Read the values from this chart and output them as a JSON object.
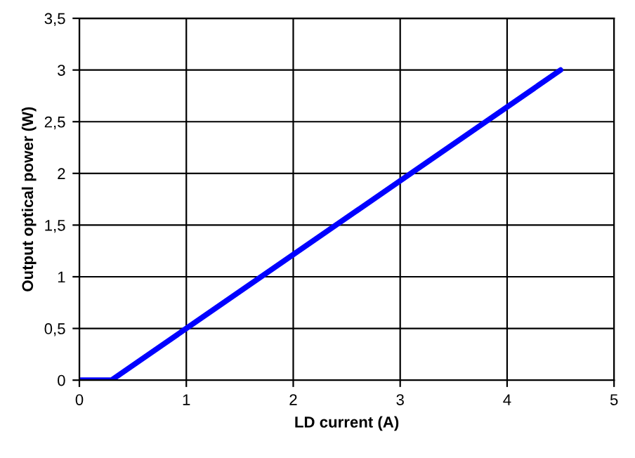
{
  "chart_data": {
    "type": "line",
    "xlabel": "LD current (A)",
    "ylabel": "Output optical power (W)",
    "series": [
      {
        "color": "#0000ff",
        "x": [
          0,
          0.3,
          4.5
        ],
        "values": [
          0,
          0,
          3.0
        ]
      }
    ],
    "xlim": [
      0,
      5
    ],
    "xticks": [
      0,
      1,
      2,
      3,
      4,
      5
    ],
    "ylim": [
      0,
      3.5
    ],
    "yticks": [
      0,
      {
        "value": 0.5,
        "label": "0,5"
      },
      1,
      {
        "value": 1.5,
        "label": "1,5"
      },
      2,
      {
        "value": 2.5,
        "label": "2,5"
      },
      3,
      {
        "value": 3.5,
        "label": "3,5"
      }
    ],
    "grid": true,
    "legend": false
  }
}
